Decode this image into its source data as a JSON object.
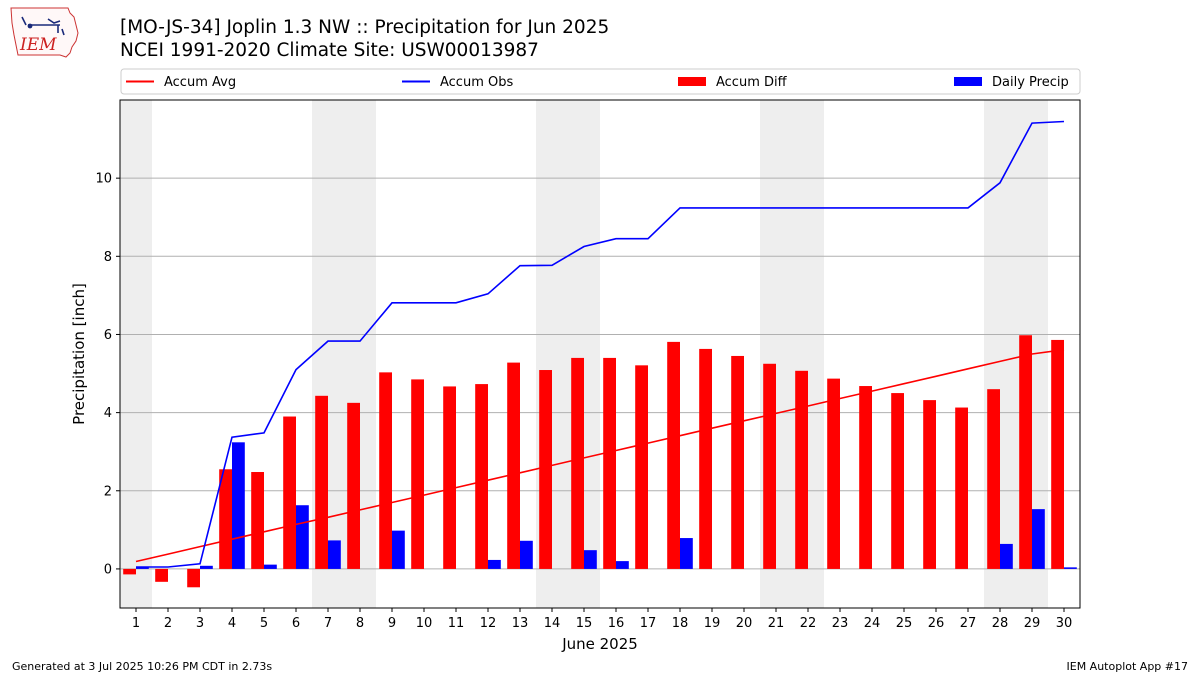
{
  "header": {
    "title": "[MO-JS-34] Joplin 1.3 NW :: Precipitation for Jun 2025",
    "subtitle": "NCEI 1991-2020 Climate Site: USW00013987"
  },
  "logo": {
    "text": "IEM"
  },
  "footer": {
    "generated": "Generated at 3 Jul 2025 10:26 PM CDT in 2.73s",
    "app": "IEM Autoplot App #17"
  },
  "chart_data": {
    "type": "bar",
    "xlabel": "June 2025",
    "ylabel": "Precipitation [inch]",
    "ylim": [
      -1,
      12
    ],
    "yticks": [
      0,
      2,
      4,
      6,
      8,
      10
    ],
    "categories": [
      "1",
      "2",
      "3",
      "4",
      "5",
      "6",
      "7",
      "8",
      "9",
      "10",
      "11",
      "12",
      "13",
      "14",
      "15",
      "16",
      "17",
      "18",
      "19",
      "20",
      "21",
      "22",
      "23",
      "24",
      "25",
      "26",
      "27",
      "28",
      "29",
      "30"
    ],
    "weekend_days": [
      1,
      7,
      8,
      14,
      15,
      21,
      22,
      28,
      29
    ],
    "grid": "horizontal",
    "legend_placement": "top",
    "series": [
      {
        "name": "Accum Avg",
        "kind": "line",
        "color": "#ff0000",
        "values": [
          0.19,
          0.38,
          0.57,
          0.76,
          0.95,
          1.14,
          1.32,
          1.51,
          1.7,
          1.89,
          2.08,
          2.27,
          2.46,
          2.65,
          2.84,
          3.03,
          3.22,
          3.41,
          3.6,
          3.79,
          3.98,
          4.17,
          4.36,
          4.55,
          4.74,
          4.93,
          5.12,
          5.31,
          5.5,
          5.61
        ]
      },
      {
        "name": "Accum Obs",
        "kind": "line",
        "color": "#0000ff",
        "values": [
          0.05,
          0.05,
          0.13,
          3.37,
          3.48,
          5.1,
          5.83,
          5.83,
          6.81,
          6.81,
          6.81,
          7.04,
          7.76,
          7.77,
          8.25,
          8.45,
          8.45,
          9.24,
          9.24,
          9.24,
          9.24,
          9.24,
          9.24,
          9.24,
          9.24,
          9.24,
          9.24,
          9.88,
          11.41,
          11.45
        ]
      },
      {
        "name": "Accum Diff",
        "kind": "bar",
        "color": "#ff0000",
        "values": [
          -0.14,
          -0.33,
          -0.47,
          2.55,
          2.48,
          3.9,
          4.43,
          4.25,
          5.03,
          4.85,
          4.67,
          4.73,
          5.28,
          5.09,
          5.4,
          5.4,
          5.21,
          5.81,
          5.63,
          5.45,
          5.25,
          5.07,
          4.87,
          4.68,
          4.5,
          4.32,
          4.13,
          4.6,
          5.98,
          5.86
        ]
      },
      {
        "name": "Daily Precip",
        "kind": "bar",
        "color": "#0000ff",
        "values": [
          0.05,
          0.0,
          0.08,
          3.24,
          0.11,
          1.63,
          0.73,
          0.0,
          0.98,
          0.0,
          0.0,
          0.23,
          0.72,
          0.0,
          0.48,
          0.2,
          0.0,
          0.79,
          0.0,
          0.0,
          0.0,
          0.0,
          0.0,
          0.0,
          0.0,
          0.0,
          0.0,
          0.64,
          1.53,
          0.04
        ]
      }
    ]
  }
}
